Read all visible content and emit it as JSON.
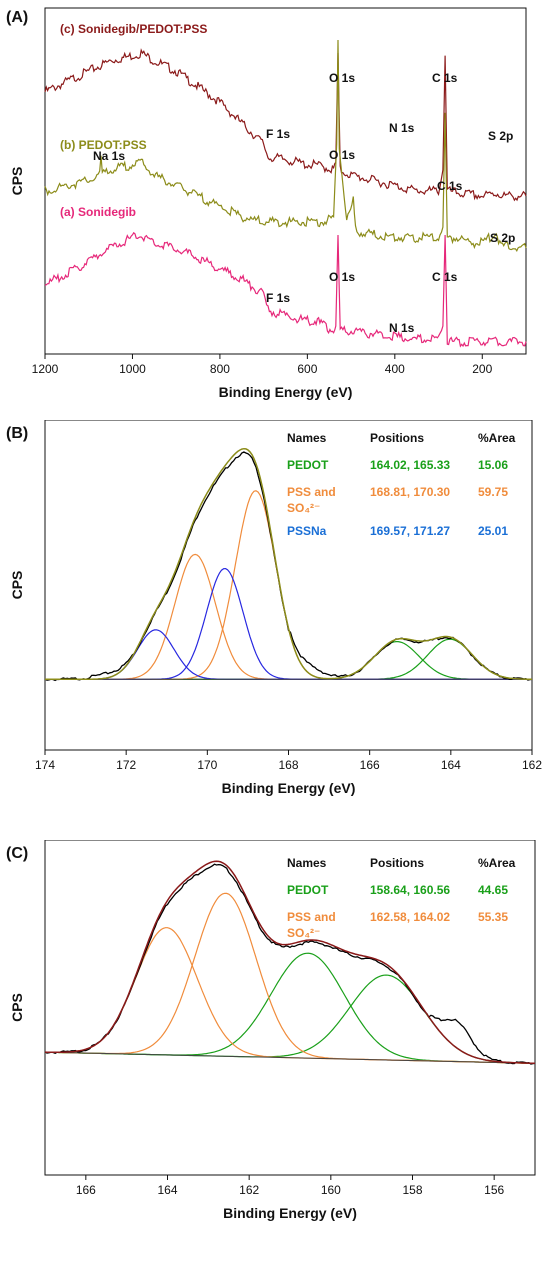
{
  "chart_data": [
    {
      "panel": "(A)",
      "type": "line",
      "xlabel": "Binding Energy (eV)",
      "ylabel": "CPS",
      "xlim": [
        1200,
        100
      ],
      "xticks": [
        1200,
        1000,
        800,
        600,
        400,
        200
      ],
      "series": [
        {
          "name": "(c) Sonidegib/PEDOT:PSS",
          "color": "#8b1a1a",
          "x": [
            1200,
            1150,
            1100,
            1050,
            1000,
            980,
            950,
            900,
            850,
            800,
            750,
            700,
            690,
            650,
            600,
            580,
            560,
            540,
            535,
            530,
            525,
            500,
            450,
            400,
            350,
            300,
            290,
            285,
            280,
            250,
            200,
            165,
            150,
            100
          ],
          "y": [
            80,
            84,
            88,
            92,
            94,
            95,
            92,
            88,
            82,
            76,
            68,
            60,
            55,
            54,
            52,
            52,
            51,
            50,
            53,
            95,
            50,
            48,
            46,
            44,
            42,
            42,
            50,
            94,
            42,
            41,
            40,
            41,
            40,
            40
          ]
        },
        {
          "name": "(b) PEDOT:PSS",
          "color": "#8c8c1a",
          "x": [
            1200,
            1100,
            1075,
            1072,
            1069,
            1050,
            1000,
            980,
            950,
            900,
            850,
            800,
            750,
            700,
            650,
            600,
            560,
            540,
            533,
            530,
            527,
            510,
            495,
            490,
            480,
            400,
            350,
            300,
            290,
            285,
            280,
            250,
            230,
            200,
            168,
            160,
            100
          ],
          "y": [
            42,
            46,
            48,
            54,
            49,
            50,
            52,
            53,
            48,
            44,
            40,
            36,
            32,
            30,
            30,
            30,
            30,
            32,
            60,
            100,
            58,
            30,
            38,
            28,
            26,
            24,
            24,
            24,
            28,
            72,
            24,
            24,
            22,
            22,
            26,
            21,
            20
          ]
        },
        {
          "name": "(a) Sonidegib",
          "color": "#e6287a",
          "x": [
            1200,
            1150,
            1100,
            1050,
            1000,
            980,
            950,
            900,
            850,
            800,
            750,
            700,
            690,
            650,
            600,
            580,
            560,
            540,
            535,
            530,
            525,
            500,
            450,
            400,
            350,
            300,
            290,
            285,
            280,
            250,
            200,
            100
          ],
          "y": [
            6,
            10,
            15,
            20,
            24,
            25,
            22,
            20,
            16,
            12,
            8,
            2,
            -4,
            -6,
            -8,
            -8,
            -10,
            -12,
            -10,
            25,
            -12,
            -12,
            -13,
            -14,
            -15,
            -15,
            -10,
            25,
            -16,
            -16,
            -16,
            -16
          ]
        }
      ],
      "annotations": [
        {
          "text": "O 1s",
          "x": 530,
          "y": 97
        },
        {
          "text": "C 1s",
          "x": 285,
          "y": 96
        },
        {
          "text": "F 1s",
          "x": 690,
          "y": 57
        },
        {
          "text": "N 1s",
          "x": 400,
          "y": 46
        },
        {
          "text": "S 2p",
          "x": 165,
          "y": 43
        },
        {
          "text": "Na 1s",
          "x": 1072,
          "y": 56
        },
        {
          "text": "O 1s",
          "x": 530,
          "y": 102
        },
        {
          "text": "C 1s",
          "x": 285,
          "y": 74
        },
        {
          "text": "S 2p",
          "x": 165,
          "y": 28
        },
        {
          "text": "O 1s",
          "x": 530,
          "y": 27
        },
        {
          "text": "C 1s",
          "x": 285,
          "y": 27
        },
        {
          "text": "F 1s",
          "x": 690,
          "y": -2
        },
        {
          "text": "N 1s",
          "x": 400,
          "y": -12
        }
      ]
    },
    {
      "panel": "(B)",
      "type": "line",
      "xlabel": "Binding Energy (eV)",
      "ylabel": "CPS",
      "xlim": [
        174,
        162
      ],
      "xticks": [
        174,
        172,
        170,
        168,
        166,
        164,
        162
      ],
      "table": {
        "headers": [
          "Names",
          "Positions",
          "%Area"
        ],
        "rows": [
          {
            "name": "PEDOT",
            "positions": "164.02, 165.33",
            "area": "15.06",
            "color": "#1aa01a"
          },
          {
            "name": "PSS and SO₄²⁻",
            "positions": "168.81, 170.30",
            "area": "59.75",
            "color": "#f08c3c"
          },
          {
            "name": "PSSNa",
            "positions": "169.57, 171.27",
            "area": "25.01",
            "color": "#1a6fd6"
          }
        ]
      },
      "components": [
        {
          "name": "PEDOT",
          "color": "#1aa01a",
          "peaks": [
            {
              "center": 164.02,
              "height": 0.17
            },
            {
              "center": 165.33,
              "height": 0.16
            }
          ],
          "sigma": 0.55
        },
        {
          "name": "PSS and SO₄²⁻",
          "color": "#f08c3c",
          "peaks": [
            {
              "center": 168.81,
              "height": 0.8
            },
            {
              "center": 170.3,
              "height": 0.53
            }
          ],
          "sigma": 0.5
        },
        {
          "name": "PSSNa",
          "color": "#2828e0",
          "peaks": [
            {
              "center": 169.57,
              "height": 0.47
            },
            {
              "center": 171.27,
              "height": 0.21
            }
          ],
          "sigma": 0.45
        }
      ],
      "envelope_color": "#8c8c1a",
      "raw_color": "#000000",
      "ylim": [
        -0.3,
        1.1
      ]
    },
    {
      "panel": "(C)",
      "type": "line",
      "xlabel": "Binding Energy (eV)",
      "ylabel": "CPS",
      "xlim": [
        167,
        155
      ],
      "xticks": [
        166,
        164,
        162,
        160,
        158,
        156
      ],
      "table": {
        "headers": [
          "Names",
          "Positions",
          "%Area"
        ],
        "rows": [
          {
            "name": "PEDOT",
            "positions": "158.64, 160.56",
            "area": "44.65",
            "color": "#1aa01a"
          },
          {
            "name": "PSS and SO₄²⁻",
            "positions": "162.58, 164.02",
            "area": "55.35",
            "color": "#f08c3c"
          }
        ]
      },
      "components": [
        {
          "name": "PEDOT",
          "color": "#1aa01a",
          "peaks": [
            {
              "center": 158.64,
              "height": 0.38
            },
            {
              "center": 160.56,
              "height": 0.47
            }
          ],
          "sigma": 0.9
        },
        {
          "name": "PSS and SO₄²⁻",
          "color": "#f08c3c",
          "peaks": [
            {
              "center": 162.58,
              "height": 0.73
            },
            {
              "center": 164.02,
              "height": 0.57
            }
          ],
          "sigma": 0.75
        }
      ],
      "envelope_color": "#8b1a1a",
      "raw_color": "#000000",
      "ylim": [
        -0.55,
        0.95
      ]
    }
  ]
}
